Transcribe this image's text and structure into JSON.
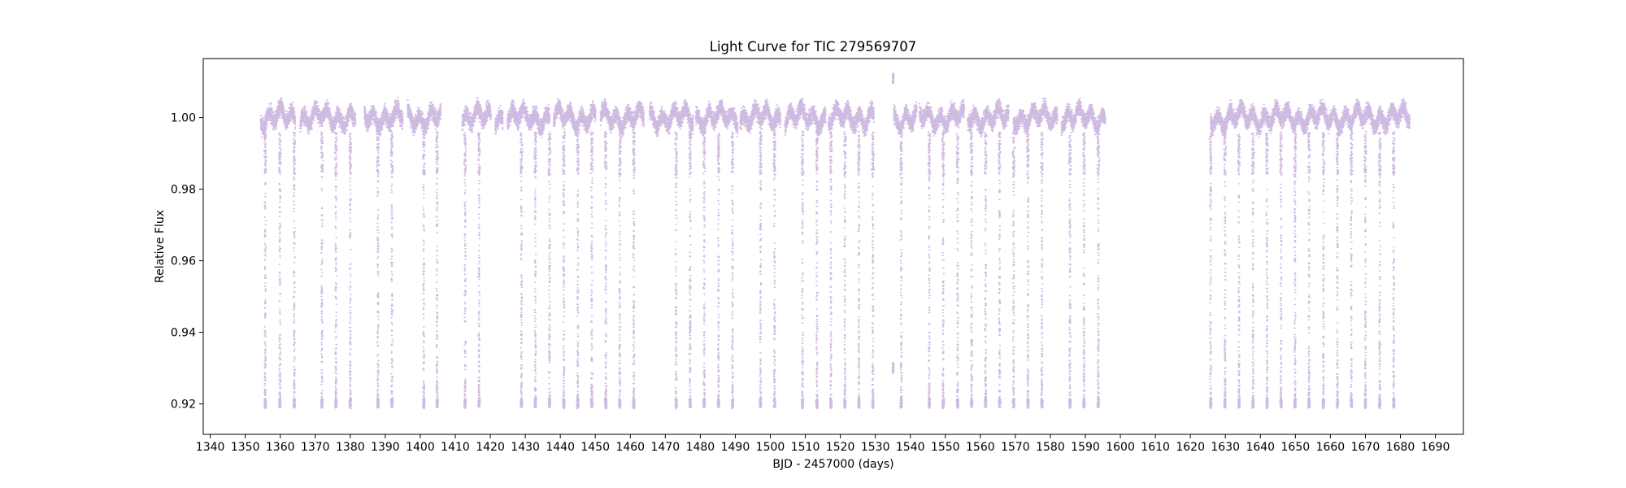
{
  "chart_data": {
    "type": "scatter",
    "title": "Light Curve for TIC 279569707",
    "xlabel": "BJD - 2457000 (days)",
    "ylabel": "Relative Flux",
    "xlim": [
      1338,
      1698
    ],
    "ylim": [
      0.9115,
      1.0165
    ],
    "x_ticks": [
      1340,
      1350,
      1360,
      1370,
      1380,
      1390,
      1400,
      1410,
      1420,
      1430,
      1440,
      1450,
      1460,
      1470,
      1480,
      1490,
      1500,
      1510,
      1520,
      1530,
      1540,
      1550,
      1560,
      1570,
      1580,
      1590,
      1600,
      1610,
      1620,
      1630,
      1640,
      1650,
      1660,
      1670,
      1680,
      1690
    ],
    "y_ticks": [
      0.92,
      0.94,
      0.96,
      0.98,
      1.0
    ],
    "y_tick_labels": [
      "0.92",
      "0.94",
      "0.96",
      "0.98",
      "1.00"
    ],
    "grid": false,
    "legend": "none",
    "marker_color": "#9467bd",
    "data_segments": [
      [
        1354.3,
        1364.2
      ],
      [
        1365.6,
        1381.4
      ],
      [
        1383.9,
        1394.9
      ],
      [
        1396.3,
        1405.8
      ],
      [
        1411.9,
        1420.1
      ],
      [
        1421.3,
        1423.5
      ],
      [
        1424.8,
        1436.9
      ],
      [
        1438.0,
        1450.0
      ],
      [
        1451.4,
        1463.8
      ],
      [
        1465.4,
        1477.9
      ],
      [
        1478.6,
        1490.6
      ],
      [
        1491.3,
        1502.8
      ],
      [
        1504.1,
        1515.7
      ],
      [
        1516.5,
        1529.5
      ],
      [
        1535.2,
        1541.7
      ],
      [
        1542.5,
        1555.3
      ],
      [
        1556.3,
        1568.0
      ],
      [
        1569.4,
        1581.9
      ],
      [
        1583.1,
        1595.6
      ],
      [
        1625.7,
        1682.6
      ]
    ],
    "transit_times": [
      1355.6,
      1359.8,
      1363.9,
      1371.8,
      1375.8,
      1379.9,
      1387.8,
      1391.8,
      1400.9,
      1404.7,
      1412.7,
      1416.7,
      1428.8,
      1432.8,
      1436.8,
      1440.9,
      1444.9,
      1448.9,
      1452.9,
      1456.9,
      1460.9,
      1473.0,
      1477.0,
      1481.0,
      1485.1,
      1489.1,
      1497.1,
      1501.1,
      1509.1,
      1513.2,
      1517.2,
      1521.2,
      1525.2,
      1529.2,
      1537.3,
      1545.3,
      1549.3,
      1553.4,
      1557.4,
      1561.4,
      1565.4,
      1569.4,
      1573.5,
      1577.5,
      1585.5,
      1589.5,
      1593.6,
      1625.7,
      1629.8,
      1633.8,
      1637.8,
      1641.8,
      1645.8,
      1649.8,
      1653.8,
      1657.9,
      1661.9,
      1665.9,
      1669.9,
      1674.0,
      1678.0
    ],
    "transit_depth_min": 0.919,
    "baseline_flux": 1.0,
    "notable_points": [
      {
        "x": 1535.0,
        "y": 0.93
      },
      {
        "x": 1535.0,
        "y": 1.011
      }
    ]
  }
}
